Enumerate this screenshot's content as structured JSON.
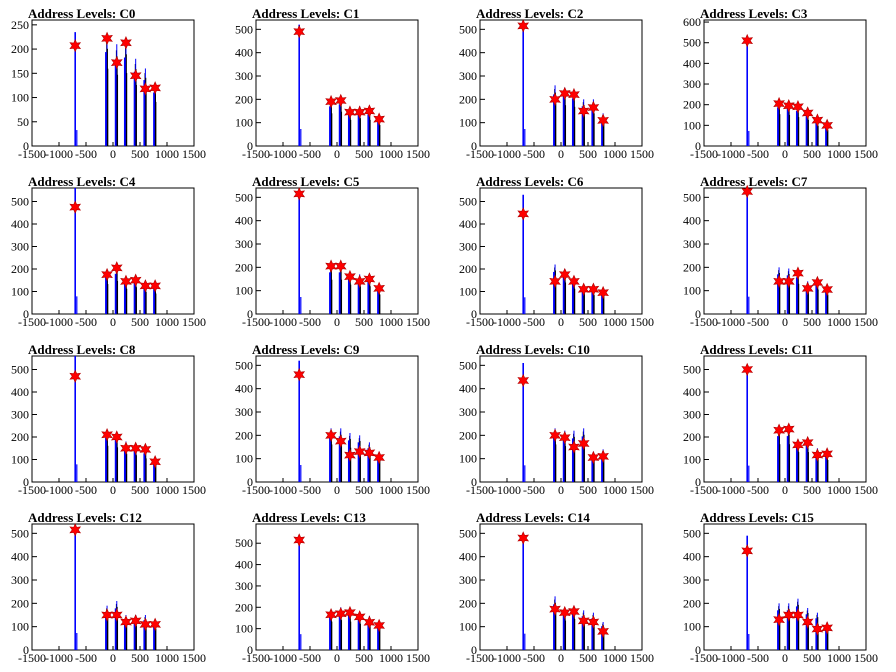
{
  "x_ticks": [
    -1500,
    -1000,
    -500,
    0,
    500,
    1000,
    1500
  ],
  "xlim": [
    -1500,
    1500
  ],
  "colors": {
    "histogram": "#0000ff",
    "marker": "#ff0000",
    "axis": "#000000"
  },
  "chart_data": [
    {
      "type": "bar",
      "title": "Address Levels: C0",
      "ylim": [
        0,
        260
      ],
      "y_ticks": [
        0,
        50,
        100,
        150,
        200,
        250
      ],
      "peaks": [
        {
          "x": -700,
          "y": 235,
          "m": 207
        },
        {
          "x": -110,
          "y": 228,
          "m": 222
        },
        {
          "x": 70,
          "y": 210,
          "m": 172
        },
        {
          "x": 240,
          "y": 215,
          "m": 213
        },
        {
          "x": 420,
          "y": 180,
          "m": 145
        },
        {
          "x": 600,
          "y": 160,
          "m": 118
        },
        {
          "x": 780,
          "y": 130,
          "m": 120
        }
      ]
    },
    {
      "type": "bar",
      "title": "Address Levels: C1",
      "ylim": [
        0,
        540
      ],
      "y_ticks": [
        0,
        100,
        200,
        300,
        400,
        500
      ],
      "peaks": [
        {
          "x": -700,
          "y": 520,
          "m": 490
        },
        {
          "x": -110,
          "y": 200,
          "m": 190
        },
        {
          "x": 70,
          "y": 210,
          "m": 195
        },
        {
          "x": 240,
          "y": 160,
          "m": 145
        },
        {
          "x": 420,
          "y": 170,
          "m": 145
        },
        {
          "x": 600,
          "y": 160,
          "m": 150
        },
        {
          "x": 780,
          "y": 130,
          "m": 115
        }
      ]
    },
    {
      "type": "bar",
      "title": "Address Levels: C2",
      "ylim": [
        0,
        540
      ],
      "y_ticks": [
        0,
        100,
        200,
        300,
        400,
        500
      ],
      "peaks": [
        {
          "x": -700,
          "y": 520,
          "m": 515
        },
        {
          "x": -110,
          "y": 260,
          "m": 200
        },
        {
          "x": 70,
          "y": 250,
          "m": 225
        },
        {
          "x": 240,
          "y": 240,
          "m": 220
        },
        {
          "x": 420,
          "y": 200,
          "m": 150
        },
        {
          "x": 600,
          "y": 200,
          "m": 165
        },
        {
          "x": 780,
          "y": 140,
          "m": 110
        }
      ]
    },
    {
      "type": "bar",
      "title": "Address Levels: C3",
      "ylim": [
        0,
        610
      ],
      "y_ticks": [
        0,
        100,
        200,
        300,
        400,
        500,
        600
      ],
      "peaks": [
        {
          "x": -700,
          "y": 520,
          "m": 510
        },
        {
          "x": -110,
          "y": 220,
          "m": 205
        },
        {
          "x": 70,
          "y": 215,
          "m": 195
        },
        {
          "x": 240,
          "y": 200,
          "m": 190
        },
        {
          "x": 420,
          "y": 180,
          "m": 160
        },
        {
          "x": 600,
          "y": 140,
          "m": 125
        },
        {
          "x": 780,
          "y": 110,
          "m": 100
        }
      ]
    },
    {
      "type": "bar",
      "title": "Address Levels: C4",
      "ylim": [
        0,
        560
      ],
      "y_ticks": [
        0,
        100,
        200,
        300,
        400,
        500
      ],
      "peaks": [
        {
          "x": -700,
          "y": 560,
          "m": 475
        },
        {
          "x": -110,
          "y": 190,
          "m": 175
        },
        {
          "x": 70,
          "y": 210,
          "m": 205
        },
        {
          "x": 240,
          "y": 160,
          "m": 145
        },
        {
          "x": 420,
          "y": 170,
          "m": 150
        },
        {
          "x": 600,
          "y": 140,
          "m": 125
        },
        {
          "x": 780,
          "y": 130,
          "m": 125
        }
      ]
    },
    {
      "type": "bar",
      "title": "Address Levels: C5",
      "ylim": [
        0,
        540
      ],
      "y_ticks": [
        0,
        100,
        200,
        300,
        400,
        500
      ],
      "peaks": [
        {
          "x": -700,
          "y": 520,
          "m": 515
        },
        {
          "x": -110,
          "y": 210,
          "m": 205
        },
        {
          "x": 70,
          "y": 210,
          "m": 205
        },
        {
          "x": 240,
          "y": 180,
          "m": 160
        },
        {
          "x": 420,
          "y": 170,
          "m": 140
        },
        {
          "x": 600,
          "y": 170,
          "m": 150
        },
        {
          "x": 780,
          "y": 120,
          "m": 110
        }
      ]
    },
    {
      "type": "bar",
      "title": "Address Levels: C6",
      "ylim": [
        0,
        560
      ],
      "y_ticks": [
        0,
        100,
        200,
        300,
        400,
        500
      ],
      "peaks": [
        {
          "x": -700,
          "y": 530,
          "m": 445
        },
        {
          "x": -110,
          "y": 220,
          "m": 145
        },
        {
          "x": 70,
          "y": 200,
          "m": 175
        },
        {
          "x": 240,
          "y": 160,
          "m": 145
        },
        {
          "x": 420,
          "y": 130,
          "m": 110
        },
        {
          "x": 600,
          "y": 120,
          "m": 110
        },
        {
          "x": 780,
          "y": 110,
          "m": 95
        }
      ]
    },
    {
      "type": "bar",
      "title": "Address Levels: C7",
      "ylim": [
        0,
        540
      ],
      "y_ticks": [
        0,
        100,
        200,
        300,
        400,
        500
      ],
      "peaks": [
        {
          "x": -700,
          "y": 530,
          "m": 525
        },
        {
          "x": -110,
          "y": 200,
          "m": 140
        },
        {
          "x": 70,
          "y": 195,
          "m": 140
        },
        {
          "x": 240,
          "y": 185,
          "m": 175
        },
        {
          "x": 420,
          "y": 140,
          "m": 110
        },
        {
          "x": 600,
          "y": 150,
          "m": 135
        },
        {
          "x": 780,
          "y": 120,
          "m": 105
        }
      ]
    },
    {
      "type": "bar",
      "title": "Address Levels: C8",
      "ylim": [
        0,
        560
      ],
      "y_ticks": [
        0,
        100,
        200,
        300,
        400,
        500
      ],
      "peaks": [
        {
          "x": -700,
          "y": 560,
          "m": 470
        },
        {
          "x": -110,
          "y": 230,
          "m": 210
        },
        {
          "x": 70,
          "y": 220,
          "m": 200
        },
        {
          "x": 240,
          "y": 180,
          "m": 150
        },
        {
          "x": 420,
          "y": 170,
          "m": 150
        },
        {
          "x": 600,
          "y": 150,
          "m": 145
        },
        {
          "x": 780,
          "y": 110,
          "m": 90
        }
      ]
    },
    {
      "type": "bar",
      "title": "Address Levels: C9",
      "ylim": [
        0,
        540
      ],
      "y_ticks": [
        0,
        100,
        200,
        300,
        400,
        500
      ],
      "peaks": [
        {
          "x": -700,
          "y": 520,
          "m": 460
        },
        {
          "x": -110,
          "y": 230,
          "m": 200
        },
        {
          "x": 70,
          "y": 230,
          "m": 175
        },
        {
          "x": 240,
          "y": 210,
          "m": 115
        },
        {
          "x": 420,
          "y": 200,
          "m": 130
        },
        {
          "x": 600,
          "y": 170,
          "m": 125
        },
        {
          "x": 780,
          "y": 130,
          "m": 105
        }
      ]
    },
    {
      "type": "bar",
      "title": "Address Levels: C10",
      "ylim": [
        0,
        540
      ],
      "y_ticks": [
        0,
        100,
        200,
        300,
        400,
        500
      ],
      "peaks": [
        {
          "x": -700,
          "y": 510,
          "m": 435
        },
        {
          "x": -110,
          "y": 230,
          "m": 200
        },
        {
          "x": 70,
          "y": 220,
          "m": 190
        },
        {
          "x": 240,
          "y": 220,
          "m": 150
        },
        {
          "x": 420,
          "y": 230,
          "m": 165
        },
        {
          "x": 600,
          "y": 130,
          "m": 105
        },
        {
          "x": 780,
          "y": 140,
          "m": 110
        }
      ]
    },
    {
      "type": "bar",
      "title": "Address Levels: C11",
      "ylim": [
        0,
        560
      ],
      "y_ticks": [
        0,
        100,
        200,
        300,
        400,
        500
      ],
      "peaks": [
        {
          "x": -700,
          "y": 520,
          "m": 500
        },
        {
          "x": -110,
          "y": 240,
          "m": 230
        },
        {
          "x": 70,
          "y": 240,
          "m": 235
        },
        {
          "x": 240,
          "y": 190,
          "m": 165
        },
        {
          "x": 420,
          "y": 190,
          "m": 175
        },
        {
          "x": 600,
          "y": 150,
          "m": 120
        },
        {
          "x": 780,
          "y": 140,
          "m": 125
        }
      ]
    },
    {
      "type": "bar",
      "title": "Address Levels: C12",
      "ylim": [
        0,
        540
      ],
      "y_ticks": [
        0,
        100,
        200,
        300,
        400,
        500
      ],
      "peaks": [
        {
          "x": -700,
          "y": 520,
          "m": 515
        },
        {
          "x": -110,
          "y": 190,
          "m": 150
        },
        {
          "x": 70,
          "y": 210,
          "m": 150
        },
        {
          "x": 240,
          "y": 150,
          "m": 120
        },
        {
          "x": 420,
          "y": 150,
          "m": 125
        },
        {
          "x": 600,
          "y": 150,
          "m": 110
        },
        {
          "x": 780,
          "y": 130,
          "m": 110
        }
      ]
    },
    {
      "type": "bar",
      "title": "Address Levels: C13",
      "ylim": [
        0,
        590
      ],
      "y_ticks": [
        0,
        100,
        200,
        300,
        400,
        500
      ],
      "peaks": [
        {
          "x": -700,
          "y": 530,
          "m": 515
        },
        {
          "x": -110,
          "y": 190,
          "m": 165
        },
        {
          "x": 70,
          "y": 200,
          "m": 170
        },
        {
          "x": 240,
          "y": 190,
          "m": 175
        },
        {
          "x": 420,
          "y": 175,
          "m": 155
        },
        {
          "x": 600,
          "y": 160,
          "m": 130
        },
        {
          "x": 780,
          "y": 140,
          "m": 115
        }
      ]
    },
    {
      "type": "bar",
      "title": "Address Levels: C14",
      "ylim": [
        0,
        540
      ],
      "y_ticks": [
        0,
        100,
        200,
        300,
        400,
        500
      ],
      "peaks": [
        {
          "x": -700,
          "y": 500,
          "m": 480
        },
        {
          "x": -110,
          "y": 230,
          "m": 175
        },
        {
          "x": 70,
          "y": 180,
          "m": 160
        },
        {
          "x": 240,
          "y": 190,
          "m": 165
        },
        {
          "x": 420,
          "y": 170,
          "m": 125
        },
        {
          "x": 600,
          "y": 160,
          "m": 120
        },
        {
          "x": 780,
          "y": 120,
          "m": 80
        }
      ]
    },
    {
      "type": "bar",
      "title": "Address Levels: C15",
      "ylim": [
        0,
        540
      ],
      "y_ticks": [
        0,
        100,
        200,
        300,
        400,
        500
      ],
      "peaks": [
        {
          "x": -700,
          "y": 490,
          "m": 425
        },
        {
          "x": -110,
          "y": 200,
          "m": 130
        },
        {
          "x": 70,
          "y": 200,
          "m": 150
        },
        {
          "x": 240,
          "y": 220,
          "m": 150
        },
        {
          "x": 420,
          "y": 180,
          "m": 120
        },
        {
          "x": 600,
          "y": 160,
          "m": 90
        },
        {
          "x": 780,
          "y": 120,
          "m": 95
        }
      ]
    }
  ]
}
